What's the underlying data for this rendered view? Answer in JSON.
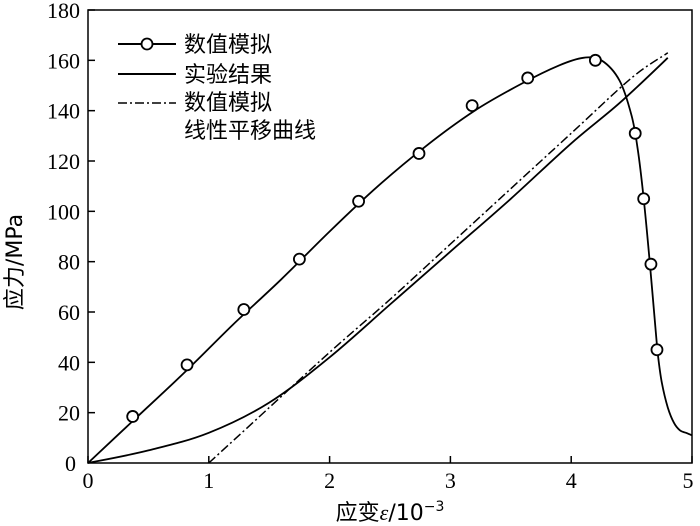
{
  "chart_data": {
    "type": "line",
    "xlabel_prefix": "应变",
    "xlabel_symbol": "ε",
    "xlabel_unit": "/10",
    "xlabel_exp": "−3",
    "ylabel": "应力/MPa",
    "xlim": [
      0,
      5
    ],
    "ylim": [
      0,
      180
    ],
    "xticks": [
      0,
      1,
      2,
      3,
      4,
      5
    ],
    "yticks": [
      20,
      40,
      60,
      80,
      100,
      120,
      140,
      160,
      180
    ],
    "legend_position": "top-left",
    "series": [
      {
        "name": "数值模拟",
        "style": "solid-circle",
        "x": [
          0,
          0.4,
          0.8,
          1.2,
          1.6,
          2.0,
          2.4,
          2.8,
          3.2,
          3.6,
          3.9,
          4.1,
          4.25,
          4.4,
          4.5,
          4.55,
          4.6,
          4.65,
          4.7,
          4.72,
          4.75,
          4.8,
          4.85,
          4.9,
          4.95,
          5.0
        ],
        "y": [
          0,
          18,
          36,
          55,
          73,
          92,
          110,
          126,
          140,
          151,
          158,
          161,
          160,
          152,
          138,
          125,
          105,
          80,
          52,
          42,
          32,
          22,
          16,
          13,
          12,
          11
        ],
        "markers_x": [
          0.37,
          0.82,
          1.29,
          1.75,
          2.24,
          2.74,
          3.18,
          3.64,
          4.2,
          4.53,
          4.6,
          4.66,
          4.71
        ],
        "markers_y": [
          18.5,
          39,
          61,
          81,
          104,
          123,
          142,
          153,
          160,
          131,
          105,
          79,
          45
        ]
      },
      {
        "name": "实验结果",
        "style": "solid",
        "x": [
          0,
          0.5,
          1.0,
          1.5,
          2.0,
          2.5,
          3.0,
          3.5,
          4.0,
          4.4,
          4.8
        ],
        "y": [
          0,
          5,
          12,
          24,
          42,
          63,
          84,
          105,
          127,
          143,
          161
        ]
      },
      {
        "name": "数值模拟 线性平移曲线",
        "style": "dashdot",
        "x": [
          1.0,
          1.5,
          2.0,
          2.5,
          3.0,
          3.5,
          4.0,
          4.5,
          4.8
        ],
        "y": [
          0,
          22,
          44,
          65,
          87,
          109,
          131,
          153,
          163
        ]
      }
    ]
  },
  "legend": {
    "items": [
      {
        "line1": "数值模拟",
        "line2": ""
      },
      {
        "line1": "实验结果",
        "line2": ""
      },
      {
        "line1": "数值模拟",
        "line2": "线性平移曲线"
      }
    ]
  }
}
